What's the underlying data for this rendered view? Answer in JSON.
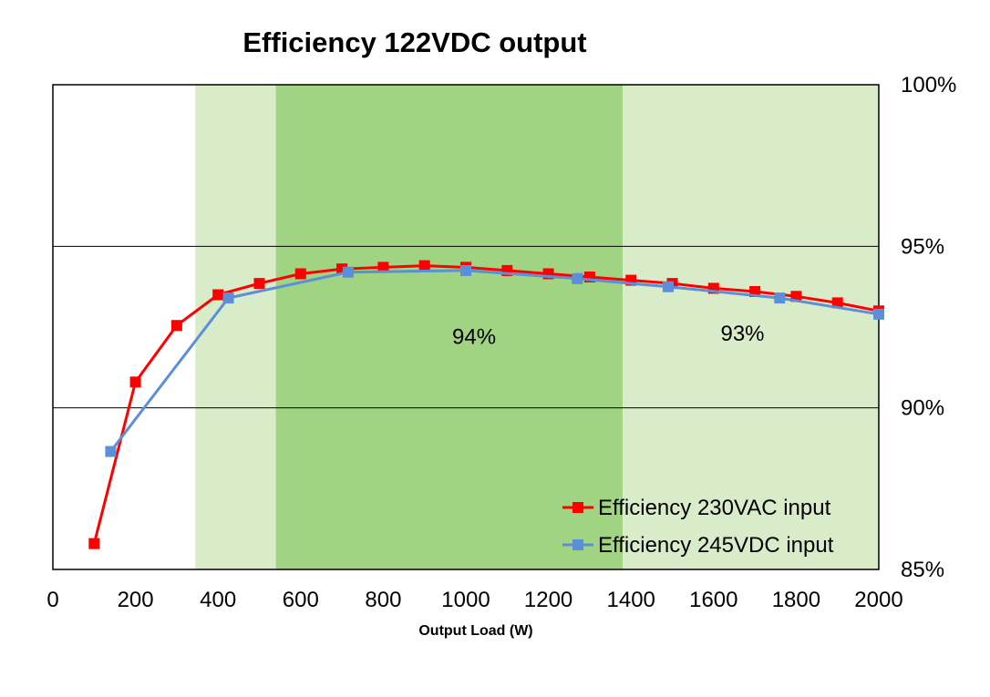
{
  "chart_data": {
    "type": "line",
    "title": "Efficiency 122VDC output",
    "xlabel": "Output Load (W)",
    "ylabel": "",
    "xlim": [
      0,
      2000
    ],
    "ylim": [
      85,
      100
    ],
    "x_ticks": [
      "0",
      "200",
      "400",
      "600",
      "800",
      "1000",
      "1200",
      "1400",
      "1600",
      "1800",
      "2000"
    ],
    "y_ticks": [
      "85%",
      "90%",
      "95%",
      "100%"
    ],
    "y_axis_side": "right",
    "gridlines": "horizontal at 90% and 95%",
    "bands": [
      {
        "x0": 345,
        "x1": 540,
        "color": "#d9ecc9"
      },
      {
        "x0": 540,
        "x1": 1380,
        "color": "#a0d482"
      },
      {
        "x0": 1380,
        "x1": 2000,
        "color": "#d9ecc9"
      }
    ],
    "annotations": [
      {
        "text": "94%",
        "x": 1020,
        "y": 92.2
      },
      {
        "text": "93%",
        "x": 1670,
        "y": 92.3
      }
    ],
    "legend_position": "bottom-right",
    "series": [
      {
        "name": "Efficiency 230VAC input",
        "color": "#ff0000",
        "x": [
          100,
          200,
          300,
          400,
          500,
          600,
          700,
          800,
          900,
          1000,
          1100,
          1200,
          1300,
          1400,
          1500,
          1600,
          1700,
          1800,
          1900,
          2000
        ],
        "y": [
          85.8,
          90.8,
          92.55,
          93.5,
          93.85,
          94.15,
          94.3,
          94.35,
          94.4,
          94.35,
          94.25,
          94.15,
          94.05,
          93.95,
          93.85,
          93.7,
          93.6,
          93.45,
          93.25,
          93.0
        ]
      },
      {
        "name": "Efficiency 245VDC input",
        "color": "#5b8fd8",
        "x": [
          140,
          425,
          715,
          1000,
          1270,
          1490,
          1760,
          2000
        ],
        "y": [
          88.65,
          93.4,
          94.2,
          94.25,
          94.0,
          93.75,
          93.4,
          92.9
        ]
      }
    ]
  }
}
